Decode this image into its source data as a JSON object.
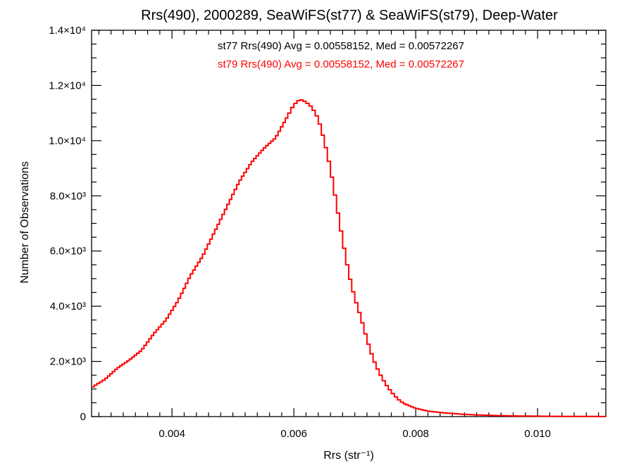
{
  "chart_data": {
    "type": "histogram",
    "title": "Rrs(490), 2000289, SeaWiFS(st77) & SeaWiFS(st79), Deep-Water",
    "xlabel": "Rrs (str⁻¹)",
    "ylabel": "Number of Observations",
    "xlim": [
      0.00268,
      0.01112
    ],
    "ylim": [
      0,
      14000
    ],
    "x_ticks": [
      {
        "value": 0.004,
        "label": "0.004"
      },
      {
        "value": 0.006,
        "label": "0.006"
      },
      {
        "value": 0.008,
        "label": "0.008"
      },
      {
        "value": 0.01,
        "label": "0.010"
      }
    ],
    "y_ticks": [
      {
        "value": 0,
        "label": "0"
      },
      {
        "value": 2000,
        "label": "2.0×10³"
      },
      {
        "value": 4000,
        "label": "4.0×10³"
      },
      {
        "value": 6000,
        "label": "6.0×10³"
      },
      {
        "value": 8000,
        "label": "8.0×10³"
      },
      {
        "value": 10000,
        "label": "1.0×10⁴"
      },
      {
        "value": 12000,
        "label": "1.2×10⁴"
      },
      {
        "value": 14000,
        "label": "1.4×10⁴"
      }
    ],
    "annotations": [
      {
        "text": "st77 Rrs(490) Avg = 0.00558152, Med = 0.00572267",
        "color": "#000000"
      },
      {
        "text": "st79 Rrs(490) Avg = 0.00558152, Med = 0.00572267",
        "color": "#ff0000"
      }
    ],
    "series": [
      {
        "color": "#ff0000",
        "points": [
          [
            0.00268,
            1050
          ],
          [
            0.0029,
            1350
          ],
          [
            0.0031,
            1750
          ],
          [
            0.0033,
            2050
          ],
          [
            0.0035,
            2400
          ],
          [
            0.0037,
            3000
          ],
          [
            0.0039,
            3500
          ],
          [
            0.0041,
            4200
          ],
          [
            0.0043,
            5100
          ],
          [
            0.0045,
            5800
          ],
          [
            0.0047,
            6700
          ],
          [
            0.0049,
            7600
          ],
          [
            0.0051,
            8500
          ],
          [
            0.0053,
            9200
          ],
          [
            0.0055,
            9700
          ],
          [
            0.0057,
            10100
          ],
          [
            0.0059,
            10900
          ],
          [
            0.006,
            11300
          ],
          [
            0.0061,
            11500
          ],
          [
            0.0062,
            11400
          ],
          [
            0.0063,
            11200
          ],
          [
            0.0064,
            10800
          ],
          [
            0.0065,
            10000
          ],
          [
            0.0066,
            9000
          ],
          [
            0.0067,
            7700
          ],
          [
            0.0068,
            6400
          ],
          [
            0.0069,
            5200
          ],
          [
            0.007,
            4300
          ],
          [
            0.0071,
            3600
          ],
          [
            0.0072,
            2800
          ],
          [
            0.0073,
            2100
          ],
          [
            0.0074,
            1600
          ],
          [
            0.0075,
            1200
          ],
          [
            0.0076,
            900
          ],
          [
            0.0077,
            650
          ],
          [
            0.0078,
            480
          ],
          [
            0.008,
            300
          ],
          [
            0.0082,
            200
          ],
          [
            0.0084,
            150
          ],
          [
            0.0086,
            110
          ],
          [
            0.0088,
            80
          ],
          [
            0.009,
            60
          ],
          [
            0.0093,
            40
          ],
          [
            0.0096,
            25
          ],
          [
            0.01,
            15
          ],
          [
            0.0104,
            8
          ],
          [
            0.0108,
            5
          ],
          [
            0.01112,
            3
          ]
        ]
      }
    ]
  }
}
